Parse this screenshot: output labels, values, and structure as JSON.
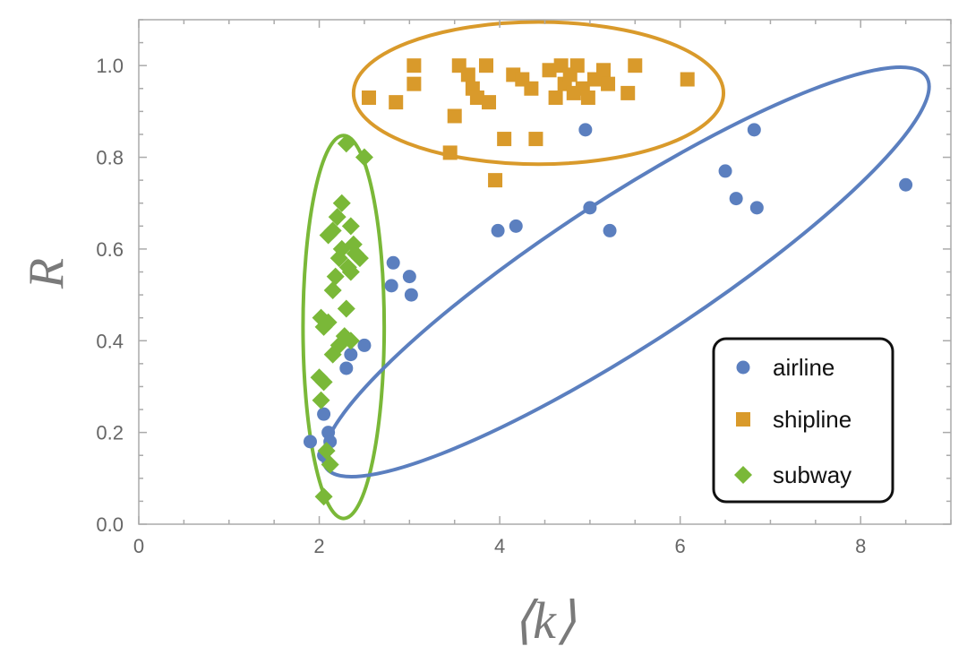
{
  "chart_data": {
    "type": "scatter",
    "title": "",
    "xlabel": "⟨k⟩",
    "ylabel": "R",
    "xlim": [
      0,
      9
    ],
    "ylim": [
      0,
      1.1
    ],
    "x_ticks": [
      0,
      2,
      4,
      6,
      8
    ],
    "y_ticks": [
      0.0,
      0.2,
      0.4,
      0.6,
      0.8,
      1.0
    ],
    "x_tick_labels": [
      "0",
      "2",
      "4",
      "6",
      "8"
    ],
    "y_tick_labels": [
      "0.0",
      "0.2",
      "0.4",
      "0.6",
      "0.8",
      "1.0"
    ],
    "grid": false,
    "legend": {
      "position": "bottom-right",
      "entries": [
        "airline",
        "shipline",
        "subway"
      ]
    },
    "series": [
      {
        "name": "airline",
        "marker": "circle",
        "color": "#5b7fbf",
        "points": [
          [
            1.9,
            0.18
          ],
          [
            2.05,
            0.24
          ],
          [
            2.1,
            0.2
          ],
          [
            2.12,
            0.18
          ],
          [
            2.05,
            0.15
          ],
          [
            2.3,
            0.34
          ],
          [
            2.35,
            0.37
          ],
          [
            2.5,
            0.39
          ],
          [
            2.8,
            0.52
          ],
          [
            2.82,
            0.57
          ],
          [
            3.0,
            0.54
          ],
          [
            3.02,
            0.5
          ],
          [
            3.98,
            0.64
          ],
          [
            4.18,
            0.65
          ],
          [
            4.95,
            0.86
          ],
          [
            5.0,
            0.69
          ],
          [
            5.22,
            0.64
          ],
          [
            6.5,
            0.77
          ],
          [
            6.62,
            0.71
          ],
          [
            6.82,
            0.86
          ],
          [
            6.85,
            0.69
          ],
          [
            8.5,
            0.74
          ]
        ]
      },
      {
        "name": "shipline",
        "marker": "square",
        "color": "#d99a2b",
        "points": [
          [
            2.55,
            0.93
          ],
          [
            2.85,
            0.92
          ],
          [
            3.05,
            1.0
          ],
          [
            3.05,
            0.96
          ],
          [
            3.45,
            0.81
          ],
          [
            3.5,
            0.89
          ],
          [
            3.55,
            1.0
          ],
          [
            3.65,
            0.98
          ],
          [
            3.7,
            0.95
          ],
          [
            3.75,
            0.93
          ],
          [
            3.85,
            1.0
          ],
          [
            3.88,
            0.92
          ],
          [
            3.95,
            0.75
          ],
          [
            4.05,
            0.84
          ],
          [
            4.15,
            0.98
          ],
          [
            4.25,
            0.97
          ],
          [
            4.35,
            0.95
          ],
          [
            4.4,
            0.84
          ],
          [
            4.55,
            0.99
          ],
          [
            4.62,
            0.93
          ],
          [
            4.68,
            1.0
          ],
          [
            4.72,
            0.96
          ],
          [
            4.78,
            0.98
          ],
          [
            4.82,
            0.94
          ],
          [
            4.86,
            1.0
          ],
          [
            4.92,
            0.95
          ],
          [
            4.98,
            0.93
          ],
          [
            5.05,
            0.97
          ],
          [
            5.15,
            0.99
          ],
          [
            5.2,
            0.96
          ],
          [
            5.42,
            0.94
          ],
          [
            5.5,
            1.0
          ],
          [
            6.08,
            0.97
          ]
        ]
      },
      {
        "name": "subway",
        "marker": "diamond",
        "color": "#7ab838",
        "points": [
          [
            2.05,
            0.06
          ],
          [
            2.12,
            0.13
          ],
          [
            2.08,
            0.16
          ],
          [
            2.02,
            0.27
          ],
          [
            2.0,
            0.32
          ],
          [
            2.05,
            0.31
          ],
          [
            2.15,
            0.37
          ],
          [
            2.05,
            0.43
          ],
          [
            2.02,
            0.45
          ],
          [
            2.1,
            0.44
          ],
          [
            2.15,
            0.51
          ],
          [
            2.18,
            0.54
          ],
          [
            2.22,
            0.58
          ],
          [
            2.25,
            0.6
          ],
          [
            2.3,
            0.47
          ],
          [
            2.28,
            0.41
          ],
          [
            2.22,
            0.39
          ],
          [
            2.35,
            0.4
          ],
          [
            2.32,
            0.56
          ],
          [
            2.38,
            0.61
          ],
          [
            2.4,
            0.59
          ],
          [
            2.45,
            0.58
          ],
          [
            2.35,
            0.65
          ],
          [
            2.25,
            0.7
          ],
          [
            2.15,
            0.64
          ],
          [
            2.1,
            0.63
          ],
          [
            2.3,
            0.83
          ],
          [
            2.5,
            0.8
          ],
          [
            2.35,
            0.55
          ],
          [
            2.2,
            0.67
          ]
        ]
      }
    ]
  }
}
